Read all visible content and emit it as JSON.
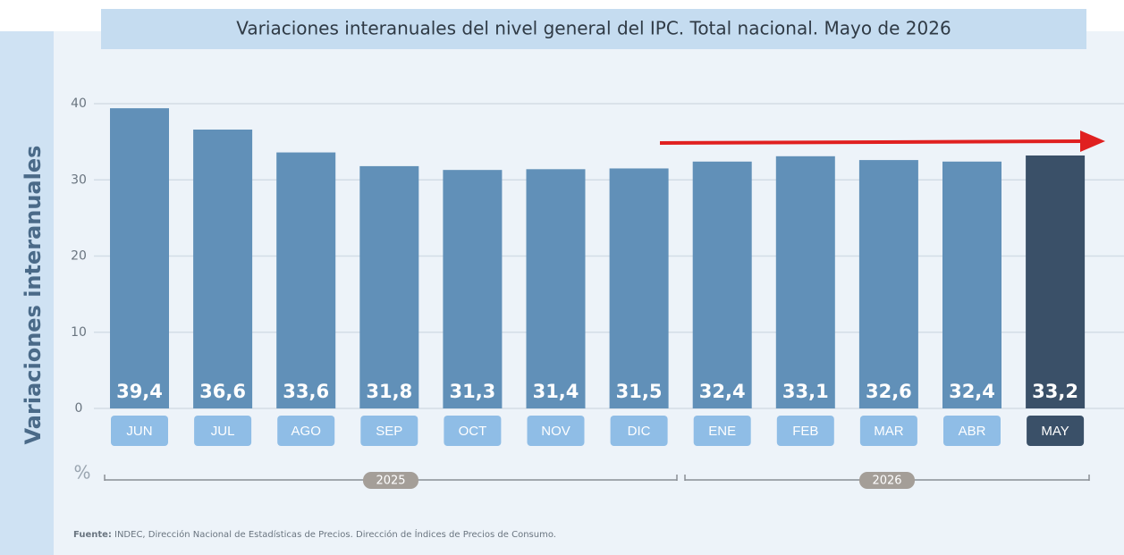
{
  "chart_data": {
    "type": "bar",
    "title": "Variaciones interanuales del nivel general del IPC. Total nacional. Mayo de 2026",
    "y_axis_label": "Variaciones interanuales",
    "unit_label": "%",
    "categories": [
      "JUN",
      "JUL",
      "AGO",
      "SEP",
      "OCT",
      "NOV",
      "DIC",
      "ENE",
      "FEB",
      "MAR",
      "ABR",
      "MAY"
    ],
    "values": [
      39.4,
      36.6,
      33.6,
      31.8,
      31.3,
      31.4,
      31.5,
      32.4,
      33.1,
      32.6,
      32.4,
      33.2
    ],
    "value_labels": [
      "39,4",
      "36,6",
      "33,6",
      "31,8",
      "31,3",
      "31,4",
      "31,5",
      "32,4",
      "33,1",
      "32,6",
      "32,4",
      "33,2"
    ],
    "colors": [
      "#6190b8",
      "#6190b8",
      "#6190b8",
      "#6190b8",
      "#6190b8",
      "#6190b8",
      "#6190b8",
      "#6190b8",
      "#6190b8",
      "#6190b8",
      "#6190b8",
      "#3a5068"
    ],
    "years": [
      "2025",
      "2026"
    ],
    "ylim": [
      0,
      40
    ],
    "yticks": [
      0,
      10,
      20,
      30,
      40
    ],
    "grid": true,
    "source_label": "Fuente:",
    "source": "INDEC, Dirección Nacional de Estadísticas de Precios. Dirección de Índices de Precios de Consumo."
  }
}
